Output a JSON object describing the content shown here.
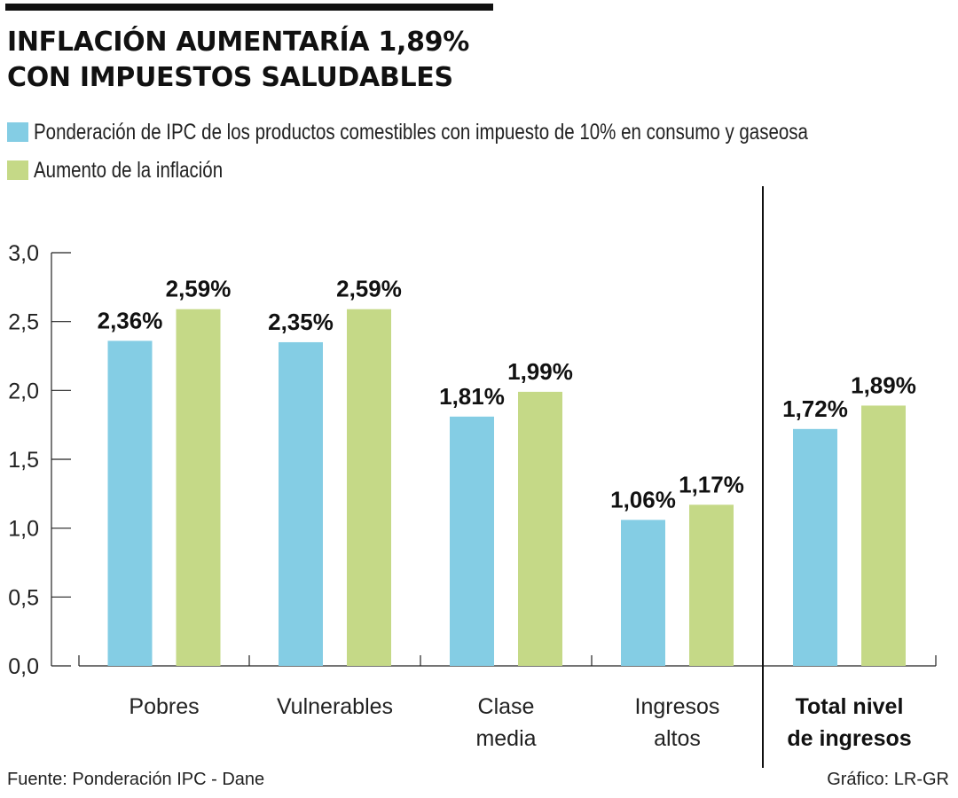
{
  "header": {
    "title_line1": "INFLACIÓN AUMENTARÍA 1,89%",
    "title_line2": "CON IMPUESTOS SALUDABLES"
  },
  "legend": [
    {
      "label": "Ponderación de IPC de los productos comestibles con impuesto de 10% en consumo y gaseosa",
      "color": "#84cde4"
    },
    {
      "label": "Aumento de la inflación",
      "color": "#c5d987"
    }
  ],
  "footer": {
    "source": "Fuente: Ponderación IPC - Dane",
    "credit": "Gráfico: LR-GR"
  },
  "chart_data": {
    "type": "bar",
    "title": "INFLACIÓN AUMENTARÍA 1,89% CON IMPUESTOS SALUDABLES",
    "xlabel": "",
    "ylabel": "",
    "ylim": [
      0,
      3.0
    ],
    "yticks": [
      0.0,
      0.5,
      1.0,
      1.5,
      2.0,
      2.5,
      3.0
    ],
    "ytick_labels": [
      "0,0",
      "0,5",
      "1,0",
      "1,5",
      "2,0",
      "2,5",
      "3,0"
    ],
    "grid": false,
    "legend_position": "top-left",
    "categories": [
      {
        "lines": [
          "Pobres"
        ],
        "bold": false
      },
      {
        "lines": [
          "Vulnerables"
        ],
        "bold": false
      },
      {
        "lines": [
          "Clase",
          "media"
        ],
        "bold": false
      },
      {
        "lines": [
          "Ingresos",
          "altos"
        ],
        "bold": false
      },
      {
        "lines": [
          "Total nivel",
          "de ingresos"
        ],
        "bold": true
      }
    ],
    "series": [
      {
        "name": "Ponderación de IPC de los productos comestibles con impuesto de 10% en consumo y gaseosa",
        "color": "#84cde4",
        "values": [
          2.36,
          2.35,
          1.81,
          1.06,
          1.72
        ],
        "labels": [
          "2,36%",
          "2,35%",
          "1,81%",
          "1,06%",
          "1,72%"
        ]
      },
      {
        "name": "Aumento de la inflación",
        "color": "#c5d987",
        "values": [
          2.59,
          2.59,
          1.99,
          1.17,
          1.89
        ],
        "labels": [
          "2,59%",
          "2,59%",
          "1,99%",
          "1,17%",
          "1,89%"
        ]
      }
    ]
  }
}
